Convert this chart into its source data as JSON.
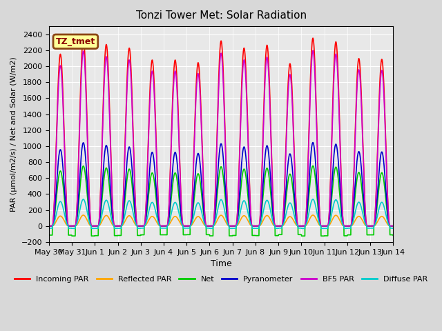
{
  "title": "Tonzi Tower Met: Solar Radiation",
  "ylabel": "PAR (μmol/m2/s) / Net and Solar (W/m2)",
  "xlabel": "Time",
  "ylim": [
    -200,
    2500
  ],
  "yticks": [
    -200,
    0,
    200,
    400,
    600,
    800,
    1000,
    1200,
    1400,
    1600,
    1800,
    2000,
    2200,
    2400
  ],
  "bg_color": "#d8d8d8",
  "plot_bg": "#e8e8e8",
  "label_box_text": "TZ_tmet",
  "label_box_facecolor": "#ffff99",
  "label_box_edgecolor": "#8B4513",
  "tick_labels": [
    "May 30",
    "May 31",
    "Jun 1",
    "Jun 2",
    "Jun 3",
    "Jun 4",
    "Jun 5",
    "Jun 6",
    "Jun 7",
    "Jun 8",
    "Jun 9",
    "Jun 10",
    "Jun 11",
    "Jun 12",
    "Jun 13",
    "Jun 14"
  ],
  "series": {
    "incoming_par": {
      "color": "#ff0000",
      "label": "Incoming PAR",
      "peak": 2250,
      "lw": 1.2
    },
    "reflected_par": {
      "color": "#ffa500",
      "label": "Reflected PAR",
      "peak": 130,
      "lw": 1.2
    },
    "net": {
      "color": "#00cc00",
      "label": "Net",
      "peak": 720,
      "lw": 1.2
    },
    "pyranometer": {
      "color": "#0000cc",
      "label": "Pyranometer",
      "peak": 1000,
      "lw": 1.2
    },
    "bf5_par": {
      "color": "#cc00cc",
      "label": "BF5 PAR",
      "peak": 2100,
      "lw": 1.2
    },
    "diffuse_par": {
      "color": "#00cccc",
      "label": "Diffuse PAR",
      "peak": 320,
      "lw": 1.2
    }
  },
  "n_days": 15
}
